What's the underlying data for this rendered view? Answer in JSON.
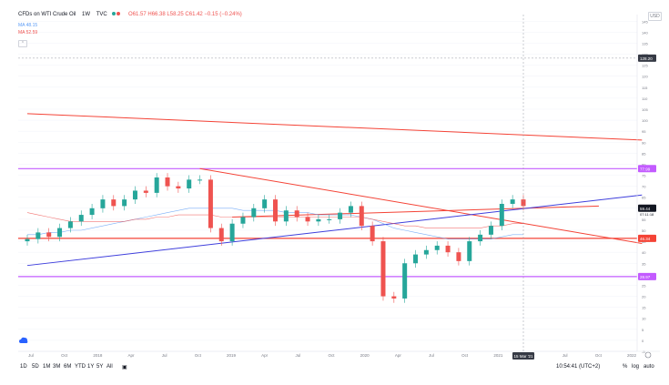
{
  "header": {
    "symbol": "CFDs on WTI Crude Oil",
    "interval": "1W",
    "source": "TVC",
    "ohlc": "O61.57 H66.38 L58.25 C61.42 −0.15 (−0.24%)",
    "ma1": "MA 48.15",
    "ma2": "MA 52.59",
    "collapse": "⌃"
  },
  "price_axis": {
    "currency": "USD",
    "ticks": [
      "145",
      "140",
      "135",
      "130",
      "125",
      "120",
      "115",
      "110",
      "105",
      "100",
      "95",
      "90",
      "85",
      "80",
      "75",
      "70",
      "65",
      "60",
      "55",
      "50",
      "45",
      "40",
      "35",
      "30",
      "25",
      "20",
      "15",
      "10",
      "5",
      "0",
      "-5"
    ],
    "crosshair_price": "128.20",
    "current_price": "59.44",
    "current_time": "07:11:18",
    "tag_purple_top": "77.99",
    "tag_red": "46.34",
    "tag_purple_bottom": "28.97"
  },
  "time_axis": {
    "labels": [
      "Jul",
      "Oct",
      "2018",
      "Apr",
      "Jul",
      "Oct",
      "2019",
      "Apr",
      "Jul",
      "Oct",
      "2020",
      "Apr",
      "Jul",
      "Oct",
      "2021",
      "Apr",
      "Jul",
      "Oct",
      "2022"
    ],
    "crosshair_date": "15 Mar '21"
  },
  "range_buttons": [
    "1D",
    "5D",
    "1M",
    "3M",
    "6M",
    "YTD",
    "1Y",
    "5Y",
    "All"
  ],
  "calendar_icon": "calendar-icon",
  "status": {
    "clock": "10:54:41 (UTC+2)",
    "percent": "%",
    "log": "log",
    "auto": "auto"
  },
  "chart_data": {
    "type": "candlestick",
    "title": "CFDs on WTI Crude Oil",
    "ylim": [
      -5,
      148
    ],
    "x": [
      "2017-06",
      "2017-07",
      "2017-08",
      "2017-09",
      "2017-10",
      "2017-11",
      "2017-12",
      "2018-01",
      "2018-02",
      "2018-03",
      "2018-04",
      "2018-05",
      "2018-06",
      "2018-07",
      "2018-08",
      "2018-09",
      "2018-10",
      "2018-11",
      "2018-12",
      "2019-01",
      "2019-02",
      "2019-03",
      "2019-04",
      "2019-05",
      "2019-06",
      "2019-07",
      "2019-08",
      "2019-09",
      "2019-10",
      "2019-11",
      "2019-12",
      "2020-01",
      "2020-02",
      "2020-03",
      "2020-04",
      "2020-05",
      "2020-06",
      "2020-07",
      "2020-08",
      "2020-09",
      "2020-10",
      "2020-11",
      "2020-12",
      "2021-01",
      "2021-02",
      "2021-03",
      "2021-04"
    ],
    "close": [
      46,
      49,
      47,
      51,
      54,
      57,
      60,
      64,
      61,
      64,
      68,
      67,
      74,
      70,
      69,
      73,
      73,
      51,
      45,
      53,
      56,
      60,
      64,
      54,
      59,
      56,
      54,
      55,
      55,
      58,
      61,
      52,
      45,
      20,
      19,
      35,
      39,
      41,
      43,
      40,
      36,
      45,
      48,
      52,
      62,
      64,
      61
    ],
    "series": [
      {
        "name": "MA 48.15",
        "color": "#5b9cf6",
        "values": [
          48,
          48,
          49,
          49,
          50,
          50,
          51,
          52,
          53,
          54,
          55,
          56,
          57,
          58,
          59,
          60,
          60,
          60,
          60,
          60,
          59,
          59,
          59,
          59,
          58,
          58,
          58,
          57,
          57,
          57,
          57,
          56,
          55,
          53,
          51,
          50,
          49,
          48,
          47,
          46,
          46,
          46,
          46,
          46,
          47,
          48,
          48
        ]
      },
      {
        "name": "MA 52.59",
        "color": "#ef5350",
        "values": [
          58,
          57,
          56,
          55,
          54,
          54,
          54,
          54,
          54,
          54,
          55,
          55,
          56,
          56,
          57,
          57,
          57,
          57,
          56,
          56,
          56,
          56,
          56,
          56,
          56,
          56,
          56,
          56,
          56,
          56,
          56,
          56,
          55,
          54,
          53,
          52,
          52,
          51,
          51,
          51,
          51,
          51,
          51,
          52,
          52,
          53,
          53
        ]
      }
    ],
    "trendlines": [
      {
        "color": "#f44336",
        "from": [
          "2017-06",
          103
        ],
        "to": [
          "2022-03",
          91
        ]
      },
      {
        "color": "#f44336",
        "from": [
          "2018-10",
          78
        ],
        "to": [
          "2022-03",
          44
        ]
      },
      {
        "color": "#f44336",
        "from": [
          "2019-01",
          56
        ],
        "to": [
          "2021-11",
          61
        ]
      },
      {
        "color": "#3f3fdc",
        "from": [
          "2017-06",
          34
        ],
        "to": [
          "2022-03",
          66
        ]
      }
    ],
    "horizontal_lines": [
      {
        "color": "#c35bff",
        "value": 77.99
      },
      {
        "color": "#f44336",
        "value": 46.34
      },
      {
        "color": "#c35bff",
        "value": 28.97
      }
    ],
    "up_color": "#26a69a",
    "down_color": "#ef5350"
  }
}
